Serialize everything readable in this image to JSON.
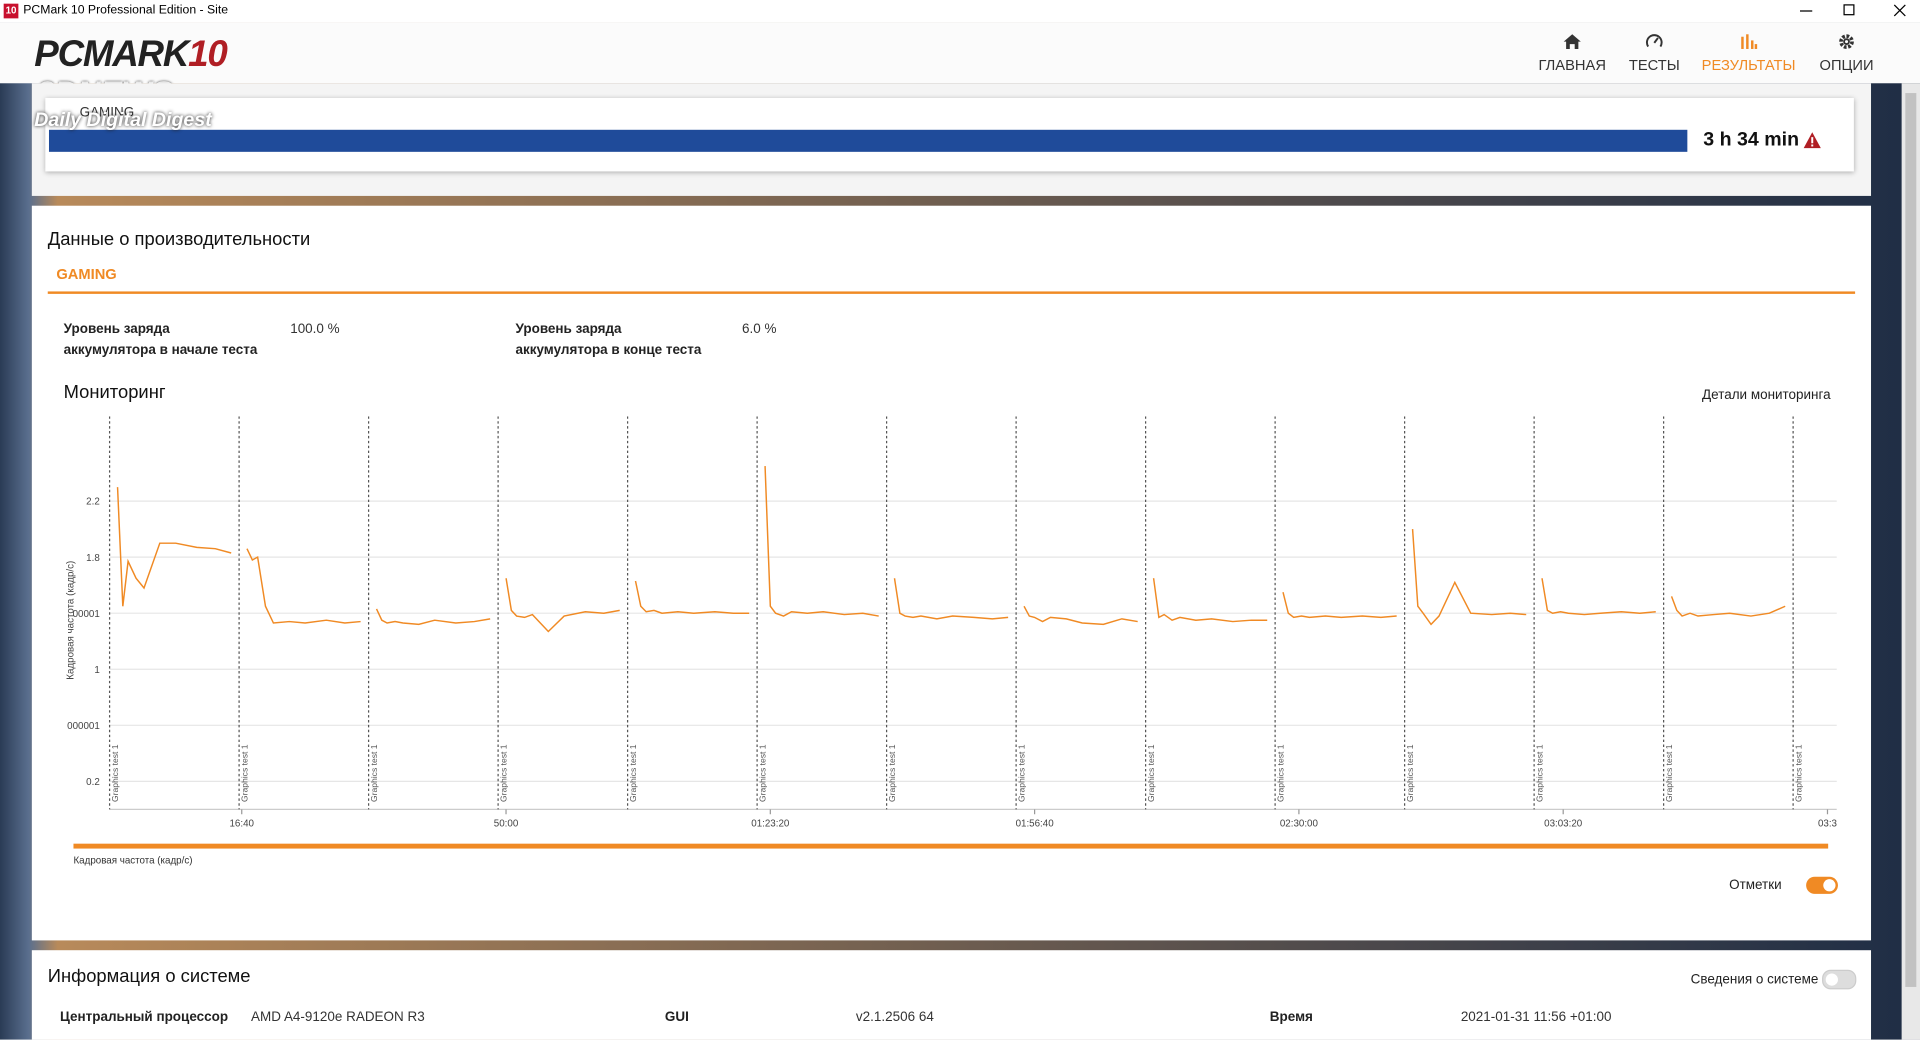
{
  "window": {
    "icon": "10",
    "title": "PCMark 10 Professional Edition - Site"
  },
  "header": {
    "logo": "PCMARK",
    "logo_sup": "10",
    "watermark": [
      "3DNEWS",
      "Daily Digital Digest"
    ],
    "nav": [
      "ГЛАВНАЯ",
      "ТЕСТЫ",
      "РЕЗУЛЬТАТЫ",
      "ОПЦИИ"
    ],
    "active_index": 2
  },
  "result": {
    "name": "GAMING",
    "duration": "3 h 34 min"
  },
  "performance": {
    "title": "Данные о производительности",
    "tab": "GAMING",
    "battery": [
      {
        "label": [
          "Уровень заряда",
          "аккумулятора в начале теста"
        ],
        "value": "100.0 %"
      },
      {
        "label": [
          "Уровень заряда",
          "аккумулятора в конце теста"
        ],
        "value": "6.0 %"
      }
    ]
  },
  "monitoring": {
    "title": "Мониторинг",
    "details_link": "Детали мониторинга",
    "toggle": {
      "label": "Отметки",
      "on": true
    }
  },
  "chart_data": {
    "type": "line",
    "y_label": "Кадровая частота (кадр/с)",
    "xlim": [
      0,
      13070
    ],
    "ylim": [
      0,
      2.7
    ],
    "xticks": [
      {
        "value": 1000,
        "label": "16:40"
      },
      {
        "value": 3000,
        "label": "50:00"
      },
      {
        "value": 5000,
        "label": "01:23:20"
      },
      {
        "value": 7000,
        "label": "01:56:40"
      },
      {
        "value": 9000,
        "label": "02:30:00"
      },
      {
        "value": 11000,
        "label": "03:03:20"
      },
      {
        "value": 13000,
        "label": "03:3"
      }
    ],
    "yticks": [
      0.2,
      {
        "value": 0.6,
        "label": "000001"
      },
      1,
      {
        "value": 1.4,
        "label": "00001"
      },
      1.8,
      2.2
    ],
    "grid": true,
    "markers": {
      "label": "Graphics test 1",
      "x": [
        0,
        980,
        1960,
        2940,
        3920,
        4900,
        5880,
        6860,
        7840,
        8820,
        9800,
        10780,
        11760,
        12740
      ]
    },
    "x": [
      60,
      100,
      140,
      200,
      260,
      380,
      500,
      660,
      800,
      920,
      950,
      1040,
      1080,
      1120,
      1180,
      1240,
      1360,
      1480,
      1640,
      1780,
      1900,
      1930,
      2020,
      2060,
      2100,
      2160,
      2220,
      2340,
      2460,
      2620,
      2760,
      2880,
      2910,
      3000,
      3040,
      3080,
      3140,
      3200,
      3320,
      3440,
      3600,
      3740,
      3860,
      3890,
      3980,
      4020,
      4060,
      4120,
      4180,
      4300,
      4420,
      4580,
      4720,
      4840,
      4870,
      4960,
      5000,
      5040,
      5100,
      5160,
      5280,
      5400,
      5560,
      5700,
      5820,
      5850,
      5940,
      5980,
      6020,
      6080,
      6140,
      6260,
      6380,
      6540,
      6680,
      6800,
      6830,
      6920,
      6960,
      7000,
      7060,
      7120,
      7240,
      7360,
      7520,
      7660,
      7780,
      7810,
      7900,
      7940,
      7980,
      8040,
      8100,
      8220,
      8340,
      8500,
      8640,
      8760,
      8790,
      8880,
      8920,
      8960,
      9020,
      9080,
      9200,
      9320,
      9480,
      9620,
      9740,
      9770,
      9860,
      9900,
      9940,
      10000,
      10060,
      10180,
      10300,
      10460,
      10600,
      10720,
      10750,
      10840,
      10880,
      10920,
      10980,
      11040,
      11160,
      11280,
      11440,
      11580,
      11700,
      11730,
      11820,
      11860,
      11900,
      11960,
      12020,
      12140,
      12260,
      12420,
      12560,
      12680
    ],
    "series": [
      {
        "name": "Кадровая частота (кадр/с)",
        "color": "#f08a24",
        "values": [
          2.3,
          1.45,
          1.77,
          1.65,
          1.58,
          1.9,
          1.9,
          1.87,
          1.86,
          1.83,
          null,
          1.86,
          1.78,
          1.8,
          1.45,
          1.33,
          1.34,
          1.33,
          1.35,
          1.33,
          1.34,
          null,
          1.43,
          1.35,
          1.33,
          1.34,
          1.33,
          1.32,
          1.35,
          1.33,
          1.34,
          1.36,
          null,
          1.65,
          1.42,
          1.38,
          1.37,
          1.39,
          1.27,
          1.38,
          1.41,
          1.4,
          1.42,
          null,
          1.63,
          1.45,
          1.41,
          1.42,
          1.4,
          1.41,
          1.4,
          1.41,
          1.4,
          1.4,
          null,
          2.45,
          1.45,
          1.4,
          1.38,
          1.41,
          1.4,
          1.41,
          1.39,
          1.4,
          1.38,
          null,
          1.65,
          1.4,
          1.38,
          1.37,
          1.38,
          1.36,
          1.38,
          1.37,
          1.36,
          1.37,
          null,
          1.45,
          1.38,
          1.37,
          1.34,
          1.37,
          1.36,
          1.33,
          1.32,
          1.36,
          1.34,
          null,
          1.65,
          1.37,
          1.39,
          1.35,
          1.37,
          1.35,
          1.36,
          1.34,
          1.35,
          1.35,
          null,
          1.55,
          1.4,
          1.37,
          1.38,
          1.37,
          1.38,
          1.37,
          1.38,
          1.37,
          1.38,
          null,
          2.0,
          1.45,
          1.4,
          1.32,
          1.38,
          1.62,
          1.4,
          1.39,
          1.4,
          1.39,
          null,
          1.65,
          1.42,
          1.4,
          1.41,
          1.4,
          1.39,
          1.4,
          1.41,
          1.4,
          1.41,
          null,
          1.52,
          1.42,
          1.38,
          1.4,
          1.38,
          1.39,
          1.4,
          1.38,
          1.4,
          1.45
        ]
      }
    ]
  },
  "system": {
    "title": "Информация о системе",
    "toggle": {
      "label": "Сведения о системе",
      "on": false
    },
    "rows": [
      [
        "Центральный процессор",
        "AMD A4-9120e RADEON R3"
      ],
      [
        "GUI",
        "v2.1.2506 64"
      ],
      [
        "Время",
        "2021-01-31 11:56 +01:00"
      ]
    ]
  }
}
